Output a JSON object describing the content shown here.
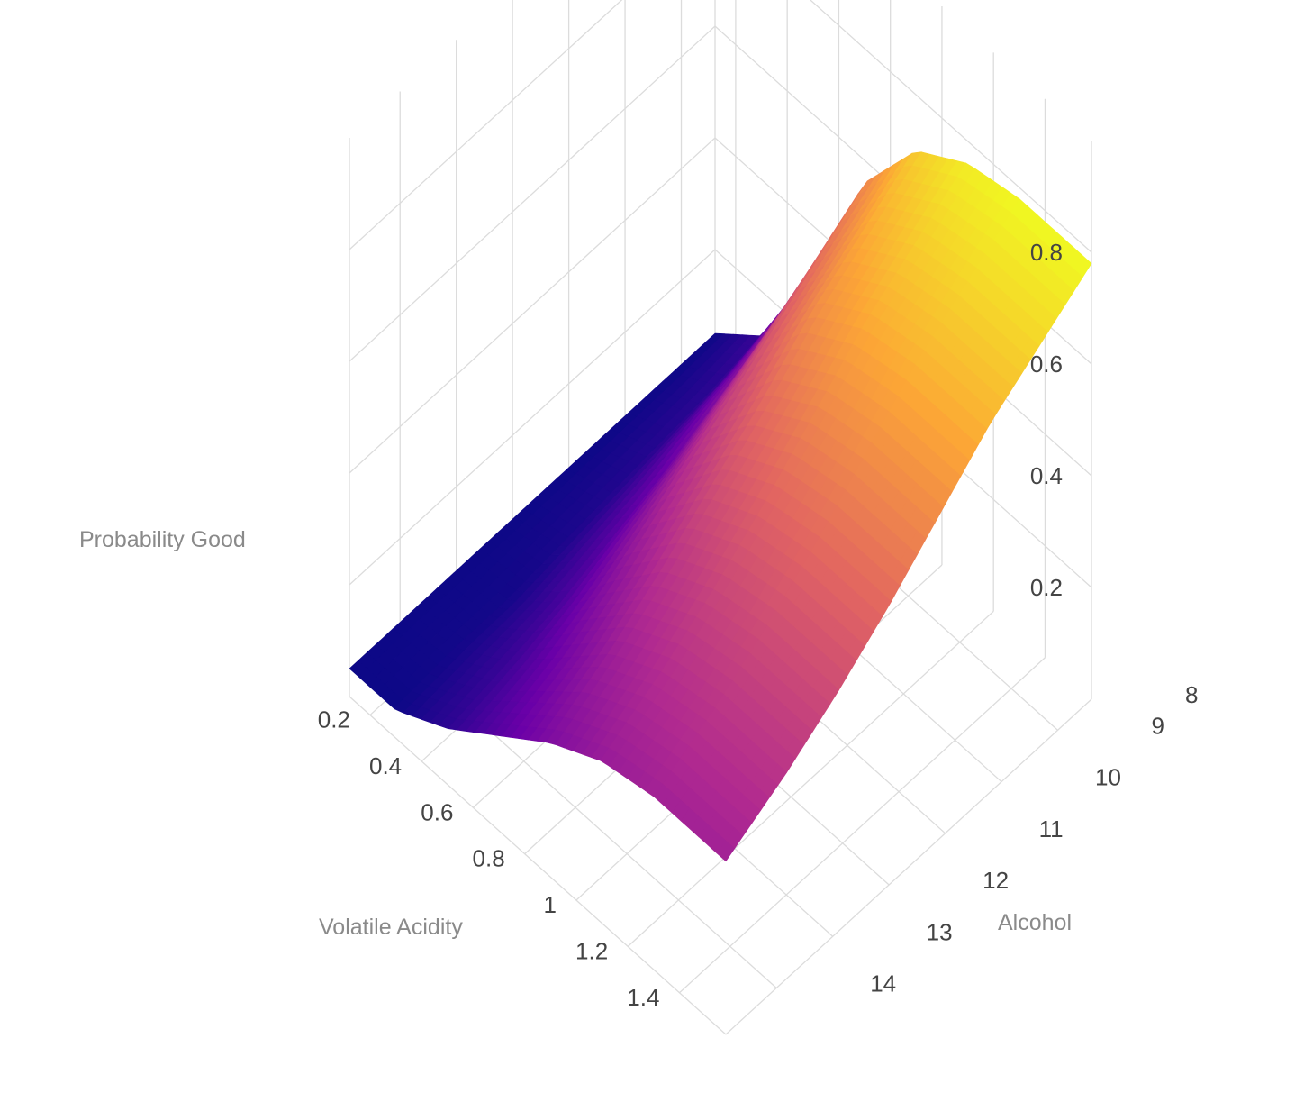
{
  "chart_data": {
    "type": "surface",
    "title": "",
    "x_axis": {
      "label": "Volatile Acidity",
      "ticks": [
        0.2,
        0.4,
        0.6,
        0.8,
        1,
        1.2,
        1.4
      ],
      "tick_labels": [
        "0.2",
        "0.4",
        "0.6",
        "0.8",
        "1",
        "1.2",
        "1.4"
      ],
      "range": [
        0.12,
        1.58
      ]
    },
    "y_axis": {
      "label": "Alcohol",
      "ticks": [
        8,
        9,
        10,
        11,
        12,
        13,
        14
      ],
      "tick_labels": [
        "8",
        "9",
        "10",
        "11",
        "12",
        "13",
        "14"
      ],
      "range": [
        8.4,
        14.9
      ]
    },
    "z_axis": {
      "label": "Probability Good",
      "ticks": [
        0.2,
        0.4,
        0.6,
        0.8
      ],
      "tick_labels": [
        "0.2",
        "0.4",
        "0.6",
        "0.8"
      ],
      "range": [
        0.0,
        1.0
      ]
    },
    "grid": true,
    "colorscale": "plasma",
    "colorscale_stops": [
      "#0d0887",
      "#6a00a8",
      "#b12a90",
      "#e16462",
      "#fca636",
      "#f0f921"
    ],
    "surface": {
      "x": [
        0.12,
        0.3,
        0.5,
        0.7,
        0.9,
        1.1,
        1.3,
        1.58
      ],
      "y": [
        8.4,
        9.3,
        10.2,
        11.1,
        12.0,
        12.9,
        13.8,
        14.9
      ],
      "z": [
        [
          0.05,
          0.12,
          0.32,
          0.56,
          0.7,
          0.76,
          0.78,
          0.78
        ],
        [
          0.05,
          0.1,
          0.28,
          0.5,
          0.64,
          0.7,
          0.72,
          0.72
        ],
        [
          0.05,
          0.09,
          0.24,
          0.44,
          0.58,
          0.64,
          0.66,
          0.66
        ],
        [
          0.05,
          0.08,
          0.2,
          0.38,
          0.5,
          0.56,
          0.58,
          0.58
        ],
        [
          0.05,
          0.07,
          0.17,
          0.32,
          0.43,
          0.48,
          0.5,
          0.5
        ],
        [
          0.05,
          0.06,
          0.14,
          0.26,
          0.36,
          0.41,
          0.43,
          0.43
        ],
        [
          0.05,
          0.06,
          0.12,
          0.21,
          0.3,
          0.35,
          0.37,
          0.37
        ],
        [
          0.05,
          0.05,
          0.1,
          0.17,
          0.24,
          0.29,
          0.31,
          0.31
        ]
      ]
    }
  }
}
